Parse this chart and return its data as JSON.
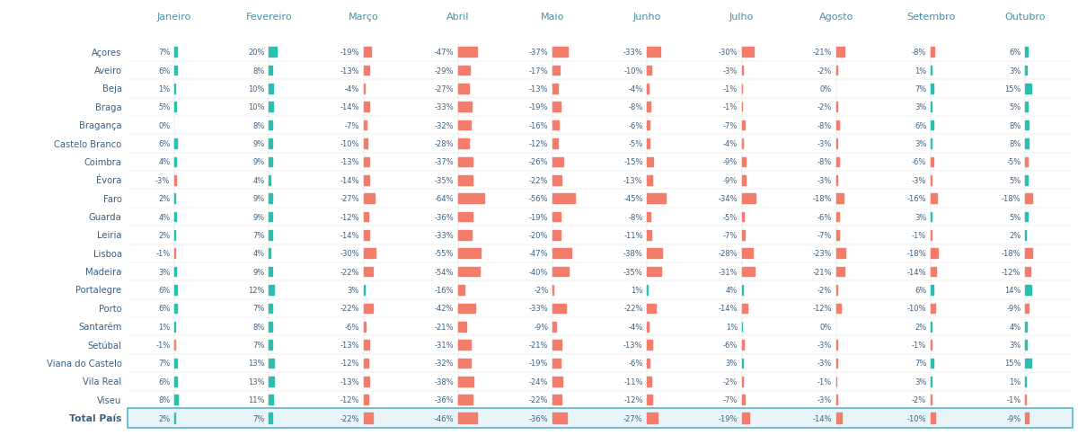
{
  "districts": [
    "Açores",
    "Aveiro",
    "Beja",
    "Braga",
    "Bragança",
    "Castelo Branco",
    "Coimbra",
    "Évora",
    "Faro",
    "Guarda",
    "Leiria",
    "Lisboa",
    "Madeira",
    "Portalegre",
    "Porto",
    "Santarém",
    "Setúbal",
    "Viana do Castelo",
    "Vila Real",
    "Viseu"
  ],
  "total_row": "Total País",
  "months": [
    "Janeiro",
    "Fevereiro",
    "Março",
    "Abril",
    "Maio",
    "Junho",
    "Julho",
    "Agosto",
    "Setembro",
    "Outubro"
  ],
  "values": {
    "Açores": [
      7,
      20,
      -19,
      -47,
      -37,
      -33,
      -30,
      -21,
      -8,
      6
    ],
    "Aveiro": [
      6,
      8,
      -13,
      -29,
      -17,
      -10,
      -3,
      -2,
      1,
      3
    ],
    "Beja": [
      1,
      10,
      -4,
      -27,
      -13,
      -4,
      -1,
      0,
      7,
      15
    ],
    "Braga": [
      5,
      10,
      -14,
      -33,
      -19,
      -8,
      -1,
      -2,
      3,
      5
    ],
    "Bragança": [
      0,
      8,
      -7,
      -32,
      -16,
      -6,
      -7,
      -8,
      6,
      8
    ],
    "Castelo Branco": [
      6,
      9,
      -10,
      -28,
      -12,
      -5,
      -4,
      -3,
      3,
      8
    ],
    "Coimbra": [
      4,
      9,
      -13,
      -37,
      -26,
      -15,
      -9,
      -8,
      -6,
      -5
    ],
    "Évora": [
      -3,
      4,
      -14,
      -35,
      -22,
      -13,
      -9,
      -3,
      -3,
      5
    ],
    "Faro": [
      2,
      9,
      -27,
      -64,
      -56,
      -45,
      -34,
      -18,
      -16,
      -18
    ],
    "Guarda": [
      4,
      9,
      -12,
      -36,
      -19,
      -8,
      -5,
      -6,
      3,
      5
    ],
    "Leiria": [
      2,
      7,
      -14,
      -33,
      -20,
      -11,
      -7,
      -7,
      -1,
      2
    ],
    "Lisboa": [
      -1,
      4,
      -30,
      -55,
      -47,
      -38,
      -28,
      -23,
      -18,
      -18
    ],
    "Madeira": [
      3,
      9,
      -22,
      -54,
      -40,
      -35,
      -31,
      -21,
      -14,
      -12
    ],
    "Portalegre": [
      6,
      12,
      3,
      -16,
      -2,
      1,
      4,
      -2,
      6,
      14
    ],
    "Porto": [
      6,
      7,
      -22,
      -42,
      -33,
      -22,
      -14,
      -12,
      -10,
      -9
    ],
    "Santarém": [
      1,
      8,
      -6,
      -21,
      -9,
      -4,
      1,
      0,
      2,
      4
    ],
    "Setúbal": [
      -1,
      7,
      -13,
      -31,
      -21,
      -13,
      -6,
      -3,
      -1,
      3
    ],
    "Viana do Castelo": [
      7,
      13,
      -12,
      -32,
      -19,
      -6,
      3,
      -3,
      7,
      15
    ],
    "Vila Real": [
      6,
      13,
      -13,
      -38,
      -24,
      -11,
      -2,
      -1,
      3,
      1
    ],
    "Viseu": [
      8,
      11,
      -12,
      -36,
      -22,
      -12,
      -7,
      -3,
      -2,
      -1
    ]
  },
  "total_values": [
    2,
    7,
    -22,
    -46,
    -36,
    -27,
    -19,
    -14,
    -10,
    -9
  ],
  "positive_color": "#2bbfaf",
  "negative_color": "#f47c6a",
  "header_color": "#4a8fa8",
  "label_color": "#3d6080",
  "total_bg": "#e8f4f8",
  "total_border": "#4aafca",
  "background_color": "#ffffff",
  "font_size_pct": 6.0,
  "font_size_header": 8.0,
  "font_size_district": 7.2,
  "font_size_total": 7.8
}
